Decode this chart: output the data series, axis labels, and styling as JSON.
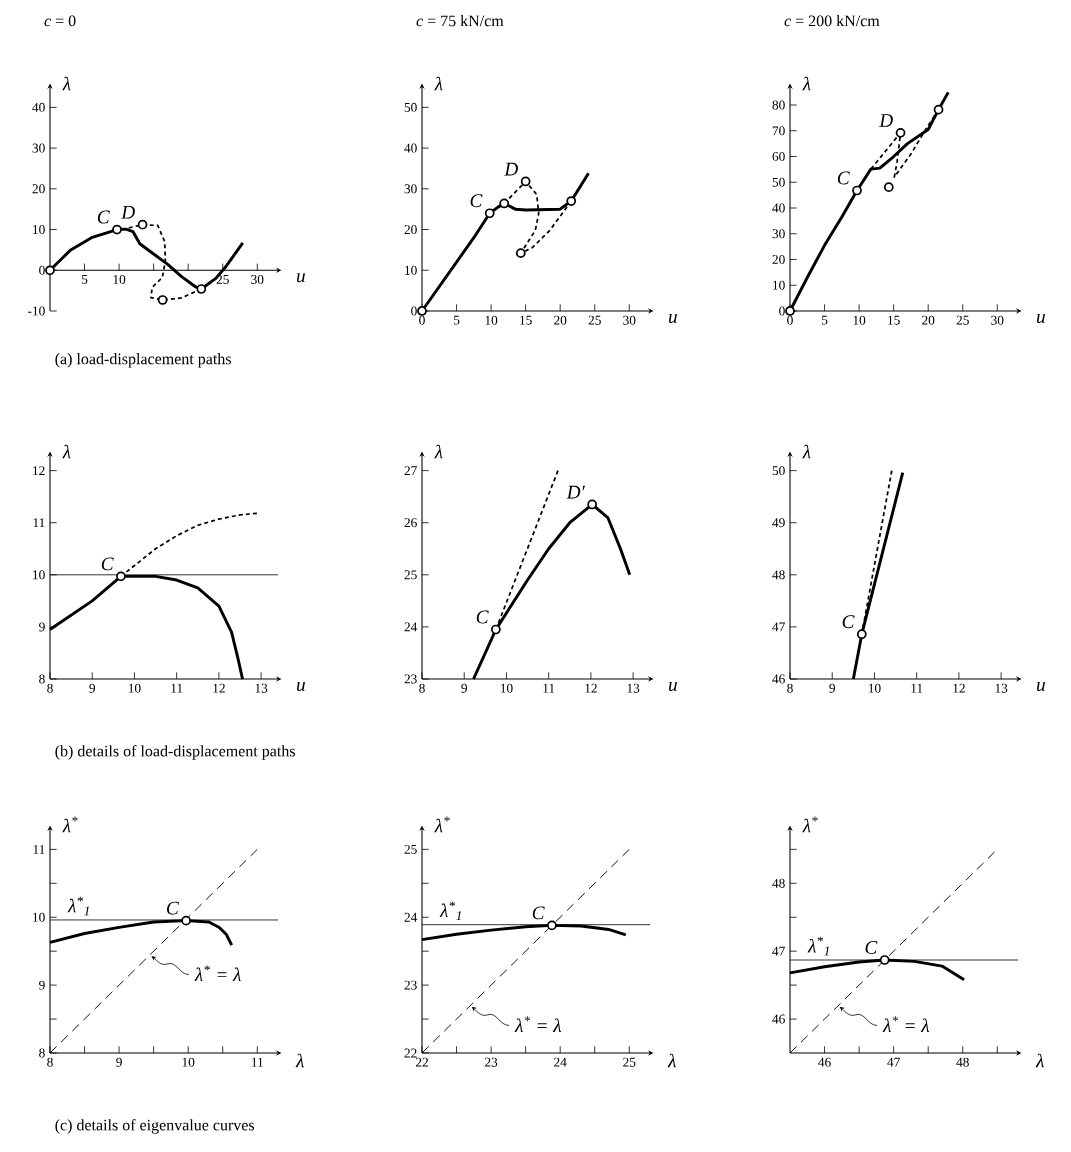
{
  "chart_data": [
    {
      "type": "line",
      "title": "*c* = 0",
      "xlabel": "u",
      "ylabel": "λ",
      "xlim": [
        0,
        33
      ],
      "ylim": [
        -10,
        45
      ],
      "xticks": [
        5,
        10,
        {
          "value": 15,
          "label": null
        },
        {
          "value": 20,
          "label": null
        },
        25,
        30
      ],
      "yticks": [
        -10,
        0,
        10,
        20,
        30,
        40
      ],
      "series": [
        {
          "line_style": "solid",
          "color": "#000000",
          "x": [
            0,
            3,
            6,
            9.7,
            11,
            12,
            13,
            15,
            17,
            19,
            21,
            21.9,
            24,
            25.5,
            27.9
          ],
          "values": [
            0,
            5,
            8,
            10,
            10.1,
            9.5,
            6.5,
            4,
            1.5,
            -1.5,
            -4,
            -4.6,
            -2,
            1,
            6.7
          ]
        },
        {
          "line_style": "dotted",
          "color": "#000000",
          "x": [
            11.4,
            13.4,
            15.6,
            16.6,
            16.7,
            16.25,
            14.8,
            14.6,
            16.3,
            19,
            21.9
          ],
          "values": [
            10.4,
            11.2,
            11,
            7,
            2.3,
            -1.8,
            -4.2,
            -6.7,
            -7.3,
            -6.8,
            -4.6
          ]
        },
        {
          "type": "scatter",
          "marker": "circle",
          "color": "#000000",
          "x": [
            0,
            9.7,
            13.4,
            16.3,
            21.9
          ],
          "values": [
            0,
            10,
            11.2,
            -7.3,
            -4.6
          ]
        }
      ],
      "annotations": [
        {
          "text": "C",
          "x": 9.7,
          "y": 10
        },
        {
          "text": "D",
          "x": 13.4,
          "y": 11.2
        },
        "(a) load-displacement paths"
      ]
    },
    {
      "type": "line",
      "title": "*c* = 75 kN/cm",
      "xlabel": "u",
      "ylabel": "λ",
      "xlim": [
        0,
        33
      ],
      "ylim": [
        0,
        55
      ],
      "xticks": [
        0,
        5,
        10,
        15,
        20,
        25,
        30
      ],
      "yticks": [
        0,
        10,
        20,
        30,
        40,
        50
      ],
      "series": [
        {
          "line_style": "solid",
          "color": "#000000",
          "x": [
            0,
            2.5,
            5,
            7.5,
            9.8,
            11,
            11.9,
            13.5,
            15,
            20,
            21.6,
            24.1
          ],
          "values": [
            0,
            6,
            12,
            18,
            24,
            25.5,
            26.4,
            25,
            24.8,
            25,
            27,
            33.8
          ]
        },
        {
          "line_style": "dotted",
          "color": "#000000",
          "x": [
            11.9,
            15,
            16.6,
            16.9,
            16.4,
            14.3,
            16,
            18.5,
            20.4,
            21.6
          ],
          "values": [
            26.4,
            31.8,
            28.6,
            24,
            19.8,
            14.2,
            15.6,
            19.8,
            24.2,
            27
          ]
        },
        {
          "type": "scatter",
          "marker": "circle",
          "color": "#000000",
          "x": [
            0,
            9.8,
            11.9,
            15,
            14.3,
            21.6
          ],
          "values": [
            0,
            24,
            26.4,
            31.8,
            14.2,
            27
          ]
        }
      ],
      "annotations": [
        {
          "text": "C",
          "x": 9.8,
          "y": 24
        },
        {
          "text": "D",
          "x": 15,
          "y": 31.8
        }
      ]
    },
    {
      "type": "line",
      "title": "*c* = 200 kN/cm",
      "xlabel": "u",
      "ylabel": "λ",
      "xlim": [
        0,
        33
      ],
      "ylim": [
        0,
        87
      ],
      "xticks": [
        0,
        5,
        10,
        15,
        20,
        25,
        30
      ],
      "yticks": [
        0,
        10,
        20,
        30,
        40,
        50,
        60,
        70,
        80
      ],
      "series": [
        {
          "line_style": "solid",
          "color": "#000000",
          "x": [
            0,
            2.5,
            5,
            7.5,
            9.7,
            11.7,
            13,
            15,
            17,
            20,
            21.5,
            22.9
          ],
          "values": [
            0,
            13,
            25.5,
            36.5,
            46.8,
            55.1,
            55.5,
            60,
            65,
            70.5,
            78.2,
            84.9
          ]
        },
        {
          "line_style": "dotted",
          "color": "#000000",
          "x": [
            11.7,
            16,
            15.5,
            15.1,
            17.5,
            19.8,
            21.5
          ],
          "values": [
            55.1,
            69.2,
            58,
            52,
            61,
            71.2,
            78.2
          ]
        },
        {
          "type": "scatter",
          "marker": "circle",
          "color": "#000000",
          "x": [
            0,
            9.7,
            16,
            14.3,
            21.5
          ],
          "values": [
            0,
            46.8,
            69.2,
            48.1,
            78.2
          ]
        }
      ],
      "annotations": [
        {
          "text": "C",
          "x": 9.7,
          "y": 46.8
        },
        {
          "text": "D",
          "x": 16,
          "y": 69.2
        }
      ]
    },
    {
      "type": "line",
      "xlabel": "u",
      "ylabel": "λ",
      "xlim": [
        8,
        13.4
      ],
      "ylim": [
        8,
        12.3
      ],
      "xticks": [
        8,
        9,
        10,
        11,
        12,
        13
      ],
      "yticks": [
        8,
        9,
        10,
        11,
        12
      ],
      "ref_lines": [
        {
          "axis": "y",
          "value": 10
        }
      ],
      "series": [
        {
          "line_style": "solid",
          "color": "#000000",
          "x": [
            8,
            9,
            9.68,
            10.5,
            11,
            11.5,
            12,
            12.3,
            12.45,
            12.56
          ],
          "values": [
            8.95,
            9.5,
            9.97,
            9.97,
            9.9,
            9.75,
            9.4,
            8.9,
            8.4,
            8
          ]
        },
        {
          "line_style": "dotted",
          "color": "#000000",
          "x": [
            9.68,
            10.5,
            11,
            11.5,
            12,
            12.5,
            12.9
          ],
          "values": [
            9.97,
            10.5,
            10.75,
            10.95,
            11.07,
            11.15,
            11.18
          ]
        },
        {
          "type": "scatter",
          "marker": "circle",
          "color": "#000000",
          "x": [
            9.68
          ],
          "values": [
            9.97
          ]
        }
      ],
      "annotations": [
        {
          "text": "C",
          "x": 9.68,
          "y": 9.97
        },
        "(b) details of load-displacement paths"
      ]
    },
    {
      "type": "line",
      "xlabel": "u",
      "ylabel": "λ",
      "xlim": [
        8,
        13.4
      ],
      "ylim": [
        23,
        27.3
      ],
      "xticks": [
        8,
        9,
        10,
        11,
        12,
        13
      ],
      "yticks": [
        23,
        24,
        25,
        26,
        27
      ],
      "series": [
        {
          "line_style": "solid",
          "color": "#000000",
          "x": [
            9.22,
            9.5,
            9.75,
            10.5,
            11,
            11.5,
            12.03,
            12.4,
            12.7,
            12.92
          ],
          "values": [
            23,
            23.5,
            23.95,
            24.9,
            25.5,
            26,
            26.35,
            26.1,
            25.5,
            25
          ]
        },
        {
          "line_style": "dotted",
          "color": "#000000",
          "x": [
            9.75,
            11.22
          ],
          "values": [
            23.95,
            27
          ]
        },
        {
          "type": "scatter",
          "marker": "circle",
          "color": "#000000",
          "x": [
            9.75,
            12.03
          ],
          "values": [
            23.95,
            26.35
          ]
        }
      ],
      "annotations": [
        {
          "text": "C",
          "x": 9.75,
          "y": 23.95
        },
        {
          "text": "D′",
          "x": 12.03,
          "y": 26.35
        }
      ]
    },
    {
      "type": "line",
      "xlabel": "u",
      "ylabel": "λ",
      "xlim": [
        8,
        13.4
      ],
      "ylim": [
        46,
        50.3
      ],
      "xticks": [
        8,
        9,
        10,
        11,
        12,
        13
      ],
      "yticks": [
        46,
        47,
        48,
        49,
        50
      ],
      "series": [
        {
          "line_style": "solid",
          "color": "#000000",
          "x": [
            9.5,
            9.7,
            10.67
          ],
          "values": [
            46,
            46.86,
            49.96
          ]
        },
        {
          "line_style": "dotted",
          "color": "#000000",
          "x": [
            9.7,
            10.41
          ],
          "values": [
            46.86,
            50
          ]
        },
        {
          "type": "scatter",
          "marker": "circle",
          "color": "#000000",
          "x": [
            9.7
          ],
          "values": [
            46.86
          ]
        }
      ],
      "annotations": [
        {
          "text": "C",
          "x": 9.7,
          "y": 46.86
        }
      ]
    },
    {
      "type": "line",
      "xlabel": "λ",
      "ylabel": "λ$^{*}$",
      "xlim": [
        8,
        11.3
      ],
      "ylim": [
        8,
        11.3
      ],
      "xticks": [
        8,
        {
          "value": 8.5,
          "label": null
        },
        9,
        {
          "value": 9.5,
          "label": null
        },
        10,
        {
          "value": 10.5,
          "label": null
        },
        11
      ],
      "yticks": [
        8,
        {
          "value": 8.5,
          "label": null
        },
        9,
        {
          "value": 9.5,
          "label": null
        },
        10,
        {
          "value": 10.5,
          "label": null
        },
        11
      ],
      "ref_lines": [
        {
          "axis": "y",
          "value": 9.96,
          "label": "λ$^{*}$$_{1}$"
        }
      ],
      "series": [
        {
          "line_style": "solid",
          "color": "#000000",
          "x": [
            8,
            8.5,
            9,
            9.5,
            9.97,
            10.3,
            10.45,
            10.55,
            10.63
          ],
          "values": [
            9.63,
            9.76,
            9.85,
            9.93,
            9.95,
            9.93,
            9.85,
            9.75,
            9.59
          ]
        },
        {
          "line_style": "dashed",
          "color": "#000000",
          "x": [
            8,
            11
          ],
          "values": [
            8,
            11
          ]
        },
        {
          "type": "scatter",
          "marker": "circle",
          "color": "#000000",
          "x": [
            9.97
          ],
          "values": [
            9.95
          ]
        }
      ],
      "annotations": [
        {
          "text": "C",
          "x": 9.97,
          "y": 9.95
        },
        {
          "text": "λ$^{*}$ = λ",
          "x": 9.45,
          "y": 9.45
        },
        "(c) details of eigenvalue curves"
      ]
    },
    {
      "type": "line",
      "xlabel": "λ",
      "ylabel": "λ$^{*}$",
      "xlim": [
        22,
        25.3
      ],
      "ylim": [
        22,
        25.3
      ],
      "xticks": [
        22,
        {
          "value": 22.5,
          "label": null
        },
        23,
        {
          "value": 23.5,
          "label": null
        },
        24,
        {
          "value": 24.5,
          "label": null
        },
        25
      ],
      "yticks": [
        22,
        {
          "value": 22.5,
          "label": null
        },
        23,
        {
          "value": 23.5,
          "label": null
        },
        24,
        {
          "value": 24.5,
          "label": null
        },
        25
      ],
      "ref_lines": [
        {
          "axis": "y",
          "value": 23.89,
          "label": "λ$^{*}$$_{1}$"
        }
      ],
      "series": [
        {
          "line_style": "solid",
          "color": "#000000",
          "x": [
            22,
            22.5,
            23,
            23.5,
            23.88,
            24.3,
            24.7,
            24.95
          ],
          "values": [
            23.67,
            23.75,
            23.81,
            23.86,
            23.88,
            23.87,
            23.82,
            23.74
          ]
        },
        {
          "line_style": "dashed",
          "color": "#000000",
          "x": [
            22,
            25
          ],
          "values": [
            22,
            25
          ]
        },
        {
          "type": "scatter",
          "marker": "circle",
          "color": "#000000",
          "x": [
            23.88
          ],
          "values": [
            23.88
          ]
        }
      ],
      "annotations": [
        {
          "text": "C",
          "x": 23.88,
          "y": 23.88
        },
        {
          "text": "λ$^{*}$ = λ",
          "x": 22.7,
          "y": 22.7
        }
      ]
    },
    {
      "type": "line",
      "xlabel": "λ",
      "ylabel": "λ$^{*}$",
      "xlim": [
        45.5,
        48.8
      ],
      "ylim": [
        45.5,
        48.8
      ],
      "xticks": [
        46,
        {
          "value": 46.5,
          "label": null
        },
        47,
        {
          "value": 47.5,
          "label": null
        },
        48,
        {
          "value": 48.5,
          "label": null
        }
      ],
      "yticks": [
        46,
        {
          "value": 46.5,
          "label": null
        },
        47,
        {
          "value": 47.5,
          "label": null
        },
        48,
        {
          "value": 48.5,
          "label": null
        }
      ],
      "ref_lines": [
        {
          "axis": "y",
          "value": 46.87,
          "label": "λ$^{*}$$_{1}$"
        }
      ],
      "series": [
        {
          "line_style": "solid",
          "color": "#000000",
          "x": [
            45.5,
            46,
            46.5,
            46.87,
            47.3,
            47.7,
            48.02
          ],
          "values": [
            46.68,
            46.77,
            46.84,
            46.87,
            46.85,
            46.78,
            46.58
          ]
        },
        {
          "line_style": "dashed",
          "color": "#000000",
          "x": [
            45.5,
            48.46
          ],
          "values": [
            45.5,
            48.46
          ]
        },
        {
          "type": "scatter",
          "marker": "circle",
          "color": "#000000",
          "x": [
            46.87
          ],
          "values": [
            46.87
          ]
        }
      ],
      "annotations": [
        {
          "text": "C",
          "x": 46.87,
          "y": 46.87
        },
        {
          "text": "λ$^{*}$ = λ",
          "x": 46.2,
          "y": 46.2
        }
      ]
    }
  ]
}
